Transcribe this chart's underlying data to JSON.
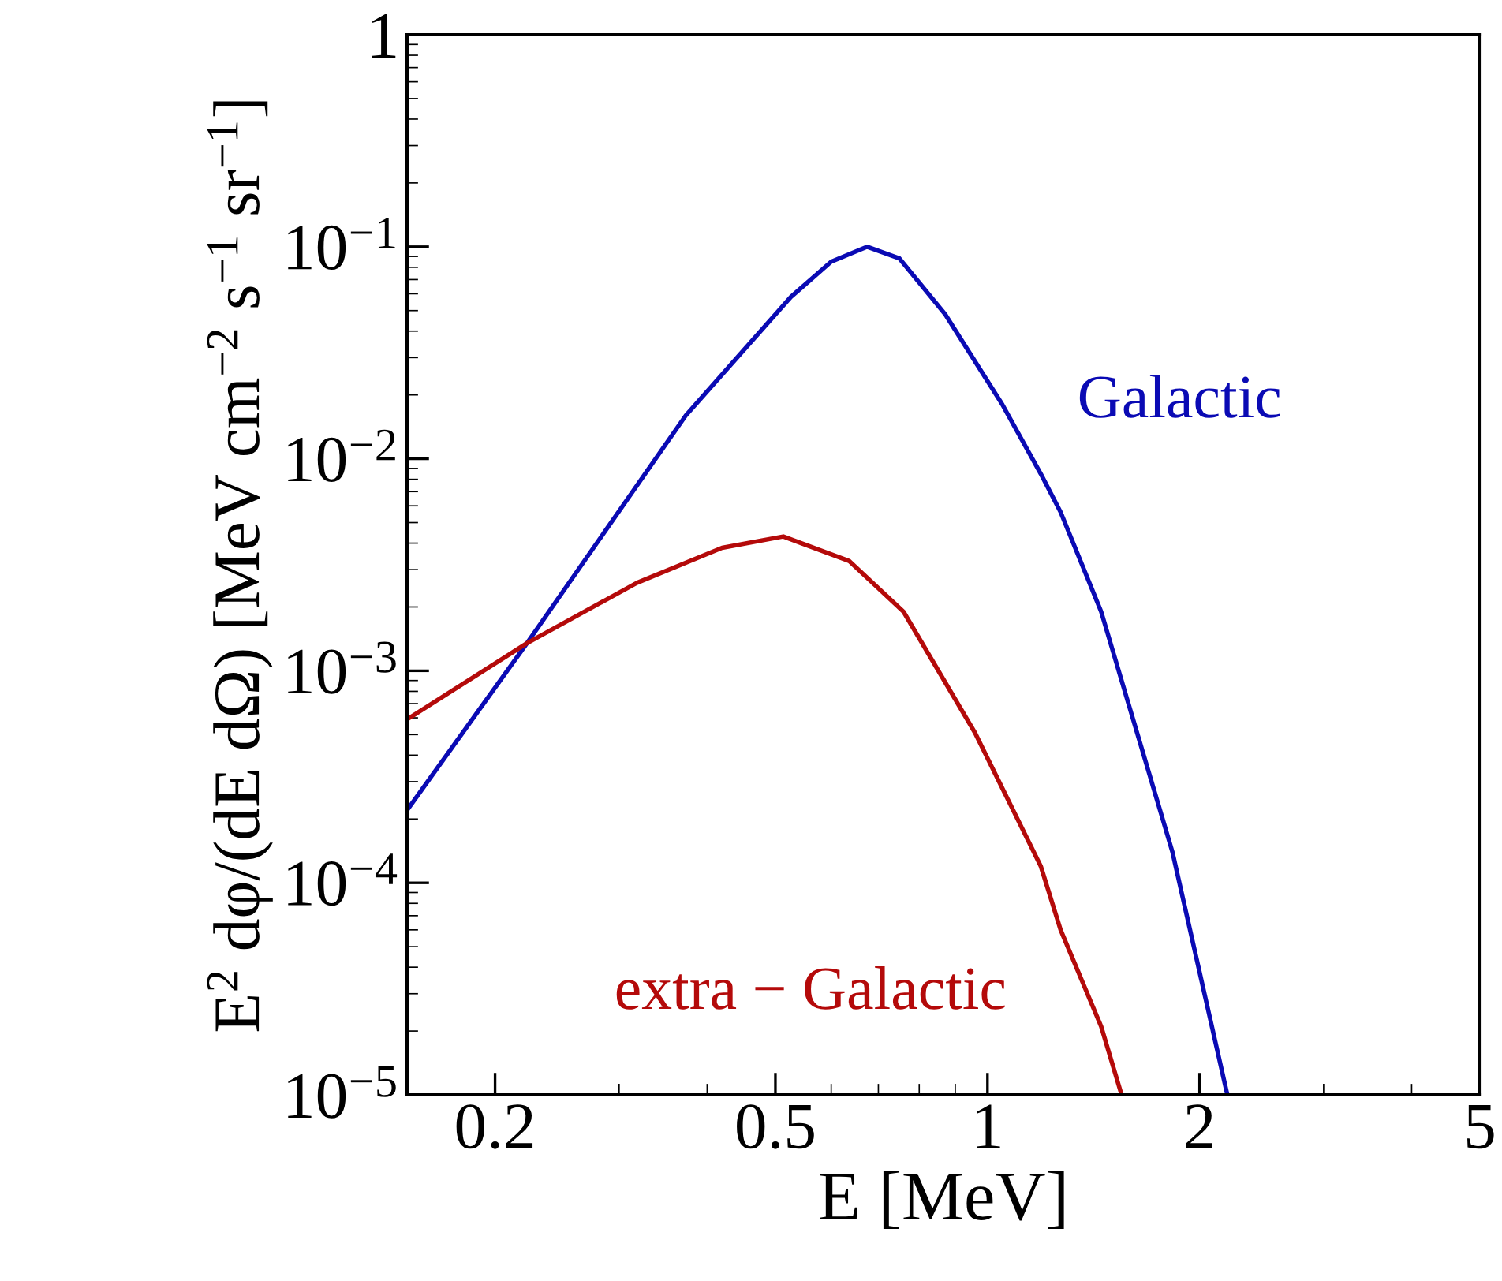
{
  "chart_data": {
    "type": "line",
    "xlabel": "E [MeV]",
    "ylabel": "E$^{2}$ dφ/(dE dΩ) [MeV cm$^{−2}$ s$^{−1}$ sr$^{−1}$]",
    "log": "xy",
    "grid": false,
    "legend": false,
    "marker": "none",
    "line_style": "solid",
    "xlim": [
      0.15,
      5
    ],
    "ylim": [
      1e-05,
      1
    ],
    "xticks": [
      0.2,
      0.5,
      1,
      2,
      5
    ],
    "yticks": [
      {
        "value": 1e-05,
        "label": "10$^{−5}$"
      },
      {
        "value": 0.0001,
        "label": "10$^{−4}$"
      },
      {
        "value": 0.001,
        "label": "10$^{−3}$"
      },
      {
        "value": 0.01,
        "label": "10$^{−2}$"
      },
      {
        "value": 0.1,
        "label": "10$^{−1}$"
      },
      {
        "value": 1,
        "label": "1"
      }
    ],
    "series": [
      {
        "name": "Galactic",
        "color": "#0a0ab4",
        "x": [
          0.15,
          0.222,
          0.373,
          0.526,
          0.6,
          0.675,
          0.75,
          0.871,
          1.05,
          1.19,
          1.27,
          1.45,
          1.83,
          2.19
        ],
        "values": [
          0.00022,
          0.00135,
          0.016,
          0.058,
          0.085,
          0.1,
          0.088,
          0.048,
          0.018,
          0.0085,
          0.0056,
          0.0019,
          0.00014,
          1e-05
        ]
      },
      {
        "name": "extra − Galactic",
        "color": "#b40a0a",
        "x": [
          0.15,
          0.222,
          0.318,
          0.42,
          0.513,
          0.636,
          0.76,
          0.96,
          1.19,
          1.27,
          1.45,
          1.55
        ],
        "values": [
          0.00059,
          0.00135,
          0.0026,
          0.0038,
          0.0043,
          0.0033,
          0.0019,
          0.00051,
          0.00012,
          6e-05,
          2.1e-05,
          1e-05
        ]
      }
    ]
  }
}
